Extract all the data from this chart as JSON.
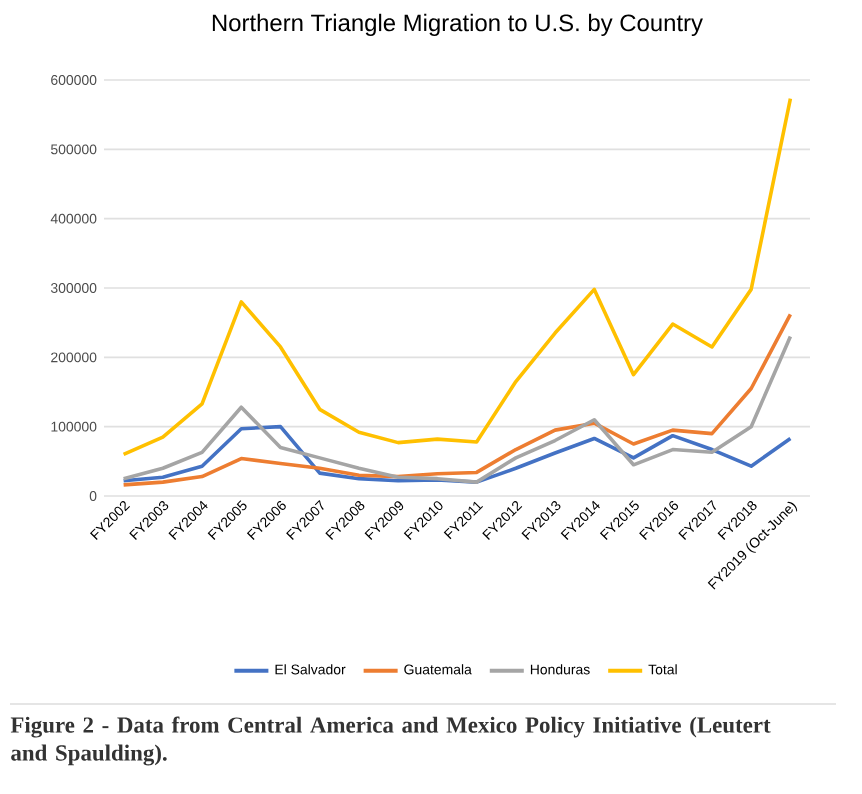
{
  "chart_data": {
    "type": "line",
    "title": "Northern Triangle Migration to U.S. by Country",
    "categories": [
      "FY2002",
      "FY2003",
      "FY2004",
      "FY2005",
      "FY2006",
      "FY2007",
      "FY2008",
      "FY2009",
      "FY2010",
      "FY2011",
      "FY2012",
      "FY2013",
      "FY2014",
      "FY2015",
      "FY2016",
      "FY2017",
      "FY2018",
      "FY2019 (Oct-June)"
    ],
    "series": [
      {
        "name": "El Salvador",
        "color": "#4472c4",
        "values": [
          22000,
          27000,
          43000,
          97000,
          100000,
          33000,
          25000,
          22000,
          23000,
          20000,
          40000,
          62000,
          83000,
          55000,
          87000,
          67000,
          43000,
          83000
        ]
      },
      {
        "name": "Guatemala",
        "color": "#ed7d31",
        "values": [
          16000,
          20000,
          28000,
          54000,
          47000,
          40000,
          30000,
          28000,
          32000,
          34000,
          67000,
          95000,
          105000,
          75000,
          95000,
          90000,
          155000,
          262000
        ]
      },
      {
        "name": "Honduras",
        "color": "#a5a5a5",
        "values": [
          25000,
          40000,
          63000,
          128000,
          70000,
          55000,
          40000,
          27000,
          25000,
          20000,
          55000,
          80000,
          110000,
          45000,
          67000,
          63000,
          100000,
          230000
        ]
      },
      {
        "name": "Total",
        "color": "#ffc000",
        "values": [
          60000,
          85000,
          133000,
          280000,
          215000,
          125000,
          92000,
          77000,
          82000,
          78000,
          165000,
          235000,
          298000,
          175000,
          248000,
          215000,
          298000,
          573000
        ]
      }
    ],
    "ylim": [
      0,
      600000
    ],
    "yticks": [
      0,
      100000,
      200000,
      300000,
      400000,
      500000,
      600000
    ],
    "grid": "y",
    "legend": "bottom",
    "marker": "none",
    "line_style": "solid",
    "annotations": [
      "Figure 2 - Data from Central America and Mexico Policy Initiative (Leutert and Spaulding)."
    ]
  }
}
